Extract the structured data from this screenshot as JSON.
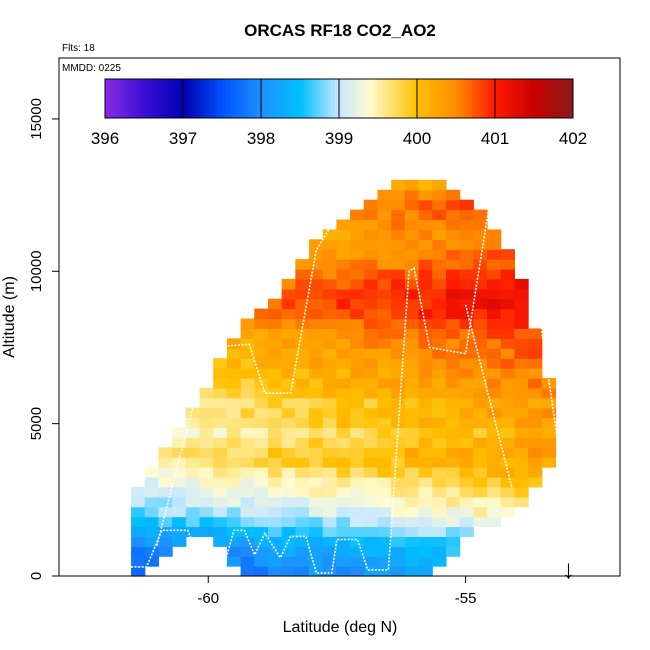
{
  "chart_data": {
    "type": "heatmap",
    "title": "ORCAS RF18 CO2_AO2",
    "subtitle_flights": "Flts: 18",
    "mmdd_note": "MMDD: 0225",
    "xlabel": "Latitude (deg N)",
    "ylabel": "Altitude (m)",
    "xlim": [
      -62.9,
      -52.0
    ],
    "ylim": [
      0,
      17000
    ],
    "x_ticks": [
      -60,
      -55
    ],
    "x_tick_labels": [
      "-60",
      "-55"
    ],
    "y_ticks": [
      0,
      5000,
      10000,
      15000
    ],
    "y_tick_labels": [
      "0",
      "5000",
      "10000",
      "15000"
    ],
    "colorbar": {
      "min": 396,
      "max": 402,
      "ticks": [
        396,
        397,
        398,
        399,
        400,
        401,
        402
      ],
      "tick_labels": [
        "396",
        "397",
        "398",
        "399",
        "400",
        "401",
        "402"
      ],
      "stops": [
        {
          "v": 396.0,
          "c": "#8a2be2"
        },
        {
          "v": 396.5,
          "c": "#3a0fd6"
        },
        {
          "v": 397.0,
          "c": "#0000b0"
        },
        {
          "v": 397.5,
          "c": "#0050ff"
        },
        {
          "v": 398.0,
          "c": "#1e90ff"
        },
        {
          "v": 398.5,
          "c": "#00bfff"
        },
        {
          "v": 399.0,
          "c": "#c6e8ff"
        },
        {
          "v": 399.4,
          "c": "#fffbd0"
        },
        {
          "v": 400.0,
          "c": "#ffc000"
        },
        {
          "v": 400.5,
          "c": "#ff8c00"
        },
        {
          "v": 401.0,
          "c": "#ff1a00"
        },
        {
          "v": 401.5,
          "c": "#c80000"
        },
        {
          "v": 402.0,
          "c": "#8b1a1a"
        }
      ]
    },
    "cell_size": {
      "dlat": 0.266,
      "dalt": 325
    },
    "envelope": {
      "lats": [
        -61.5,
        -61.0,
        -60.5,
        -60.0,
        -59.5,
        -59.0,
        -58.5,
        -58.0,
        -57.5,
        -57.0,
        -56.5,
        -56.0,
        -55.5,
        -55.0,
        -54.5,
        -54.0,
        -53.7,
        -53.4
      ],
      "bottom": [
        200,
        700,
        1300,
        1600,
        0,
        0,
        0,
        0,
        0,
        0,
        0,
        0,
        600,
        1600,
        1800,
        2400,
        3500,
        4000
      ],
      "top": [
        2800,
        4000,
        5200,
        6600,
        8000,
        8600,
        9600,
        11000,
        11700,
        12200,
        12700,
        12800,
        12700,
        12200,
        11200,
        9500,
        7500,
        5500
      ]
    },
    "profile": [
      {
        "alt": 0,
        "v": 398.1
      },
      {
        "alt": 500,
        "v": 398.2
      },
      {
        "alt": 1000,
        "v": 398.5
      },
      {
        "alt": 1500,
        "v": 398.8
      },
      {
        "alt": 2000,
        "v": 399.2
      },
      {
        "alt": 2500,
        "v": 399.4
      },
      {
        "alt": 3000,
        "v": 399.6
      },
      {
        "alt": 3500,
        "v": 399.9
      },
      {
        "alt": 4000,
        "v": 400.0
      },
      {
        "alt": 4500,
        "v": 399.7
      },
      {
        "alt": 5000,
        "v": 400.0
      },
      {
        "alt": 5500,
        "v": 399.9
      },
      {
        "alt": 6000,
        "v": 400.1
      },
      {
        "alt": 6500,
        "v": 400.2
      },
      {
        "alt": 7000,
        "v": 400.3
      },
      {
        "alt": 7500,
        "v": 400.4
      },
      {
        "alt": 8000,
        "v": 400.5
      },
      {
        "alt": 8500,
        "v": 400.8
      },
      {
        "alt": 9000,
        "v": 400.9
      },
      {
        "alt": 9500,
        "v": 400.7
      },
      {
        "alt": 10000,
        "v": 400.5
      },
      {
        "alt": 10500,
        "v": 400.4
      },
      {
        "alt": 11000,
        "v": 400.3
      },
      {
        "alt": 11500,
        "v": 400.4
      },
      {
        "alt": 12000,
        "v": 400.5
      },
      {
        "alt": 12500,
        "v": 400.3
      },
      {
        "alt": 13000,
        "v": 399.5
      }
    ],
    "lat_gradient_per_deg": 0.1,
    "flight_track": [
      [
        -61.5,
        300
      ],
      [
        -61.2,
        300
      ],
      [
        -60.9,
        1500
      ],
      [
        -60.4,
        1500
      ],
      [
        -60.1,
        300
      ],
      [
        -59.7,
        300
      ],
      [
        -59.5,
        1500
      ],
      [
        -59.3,
        1500
      ],
      [
        -59.1,
        700
      ],
      [
        -58.9,
        1400
      ],
      [
        -58.6,
        600
      ],
      [
        -58.4,
        1300
      ],
      [
        -58.1,
        1300
      ],
      [
        -57.9,
        100
      ],
      [
        -57.6,
        100
      ],
      [
        -57.5,
        1200
      ],
      [
        -57.1,
        1200
      ],
      [
        -56.9,
        200
      ],
      [
        -56.5,
        200
      ],
      [
        -56.1,
        10000
      ],
      [
        -56.0,
        10100
      ],
      [
        -55.7,
        7500
      ],
      [
        -55.0,
        7300
      ],
      [
        -54.5,
        12600
      ],
      [
        -54.2,
        12500
      ],
      [
        -53.6,
        9000
      ],
      [
        -53.2,
        4300
      ],
      [
        -52.3,
        4300
      ]
    ],
    "flight_track2": [
      [
        -61.0,
        1000
      ],
      [
        -60.0,
        7500
      ],
      [
        -59.2,
        7600
      ],
      [
        -58.9,
        6000
      ],
      [
        -58.4,
        6000
      ],
      [
        -57.9,
        10700
      ],
      [
        -57.4,
        12100
      ]
    ],
    "flight_track3": [
      [
        -55.0,
        8900
      ],
      [
        -54.1,
        2900
      ]
    ],
    "arrow": {
      "lat": -53.0,
      "label": "↓"
    }
  }
}
